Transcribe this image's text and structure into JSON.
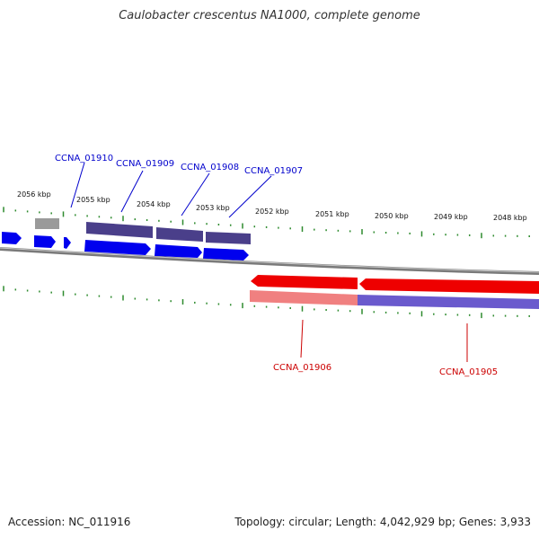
{
  "title": "Caulobacter crescentus NA1000, complete genome",
  "footer": {
    "accession": "Accession: NC_011916",
    "summary": "Topology: circular; Length: 4,042,929 bp; Genes: 3,933"
  },
  "scale_labels": [
    "2056 kbp",
    "2055 kbp",
    "2054 kbp",
    "2053 kbp",
    "2052 kbp",
    "2051 kbp",
    "2050 kbp",
    "2049 kbp",
    "2048 kbp"
  ],
  "genes_upper": [
    "CCNA_01910",
    "CCNA_01909",
    "CCNA_01908",
    "CCNA_01907"
  ],
  "genes_lower": [
    "CCNA_01906",
    "CCNA_01905"
  ],
  "colors": {
    "forward_cds": "#0000ee",
    "reverse_cds": "#ee0000",
    "upper_gene_label": "#0000cc",
    "lower_gene_label": "#cc0000",
    "function_bar": "#4a3f8a",
    "function_bar_alt": "#6a5acd",
    "function_bar_grey": "#999999",
    "function_bar_pink": "#f08080",
    "backbone": "#888888",
    "ticks": "#2e8b2e"
  }
}
